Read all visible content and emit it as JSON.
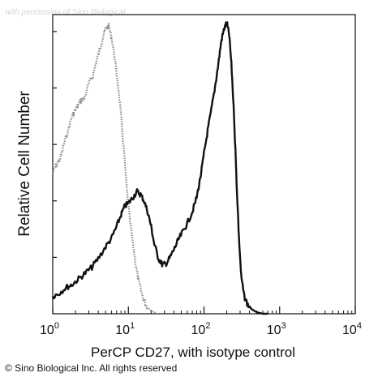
{
  "watermark": "with permission of Sino Biological",
  "copyright": "© Sino Biological Inc. All rights reserved",
  "chart_data": {
    "type": "line",
    "title": "",
    "xlabel": "PerCP CD27, with isotype control",
    "ylabel": "Relative Cell Number",
    "xscale": "log",
    "xlim": [
      1,
      10000
    ],
    "ylim": [
      0,
      1
    ],
    "x_ticks": [
      {
        "value": 1,
        "base": "10",
        "exp": "0"
      },
      {
        "value": 10,
        "base": "10",
        "exp": "1"
      },
      {
        "value": 100,
        "base": "10",
        "exp": "2"
      },
      {
        "value": 1000,
        "base": "10",
        "exp": "3"
      },
      {
        "value": 10000,
        "base": "10",
        "exp": "4"
      }
    ],
    "grid": false,
    "legend": "none",
    "series": [
      {
        "style": "dotted-gray",
        "color": "#8a8a8a",
        "x": [
          1.0,
          1.1,
          1.25,
          1.4,
          1.6,
          1.8,
          2.0,
          2.3,
          2.6,
          3.0,
          3.4,
          3.8,
          4.2,
          4.6,
          5.0,
          5.5,
          6.0,
          6.6,
          7.2,
          8.0,
          8.8,
          9.6,
          10.5,
          11.5,
          12.5,
          13.5,
          15.0,
          16.5,
          18.0,
          20.0,
          22.0,
          24.0
        ],
        "y": [
          0.48,
          0.51,
          0.53,
          0.58,
          0.63,
          0.68,
          0.7,
          0.73,
          0.74,
          0.79,
          0.82,
          0.87,
          0.91,
          0.95,
          0.98,
          0.99,
          0.95,
          0.88,
          0.8,
          0.68,
          0.55,
          0.42,
          0.32,
          0.24,
          0.17,
          0.12,
          0.07,
          0.04,
          0.02,
          0.01,
          0.005,
          0.0
        ]
      },
      {
        "style": "solid-black",
        "color": "#111111",
        "x": [
          1.0,
          1.2,
          1.5,
          1.8,
          2.2,
          2.7,
          3.3,
          4.0,
          5.0,
          6.0,
          7.0,
          8.0,
          9.0,
          10.0,
          11.5,
          13.0,
          14.5,
          16.0,
          18.0,
          20.0,
          22.0,
          25.0,
          28.0,
          31.0,
          35.0,
          40.0,
          45.0,
          52.0,
          60.0,
          70.0,
          80.0,
          90.0,
          100.0,
          112.0,
          125.0,
          140.0,
          155.0,
          170.0,
          185.0,
          200.0,
          215.0,
          230.0,
          250.0,
          270.0,
          290.0,
          310.0,
          340.0,
          380.0,
          430.0,
          500.0,
          600.0,
          700.0
        ],
        "y": [
          0.06,
          0.07,
          0.09,
          0.1,
          0.12,
          0.14,
          0.16,
          0.19,
          0.23,
          0.26,
          0.3,
          0.34,
          0.37,
          0.38,
          0.4,
          0.42,
          0.41,
          0.39,
          0.35,
          0.3,
          0.24,
          0.19,
          0.17,
          0.17,
          0.19,
          0.22,
          0.25,
          0.28,
          0.31,
          0.35,
          0.4,
          0.47,
          0.55,
          0.63,
          0.7,
          0.78,
          0.86,
          0.94,
          0.98,
          1.0,
          0.96,
          0.86,
          0.68,
          0.45,
          0.26,
          0.13,
          0.06,
          0.03,
          0.015,
          0.005,
          0.0,
          0.0
        ]
      }
    ]
  }
}
